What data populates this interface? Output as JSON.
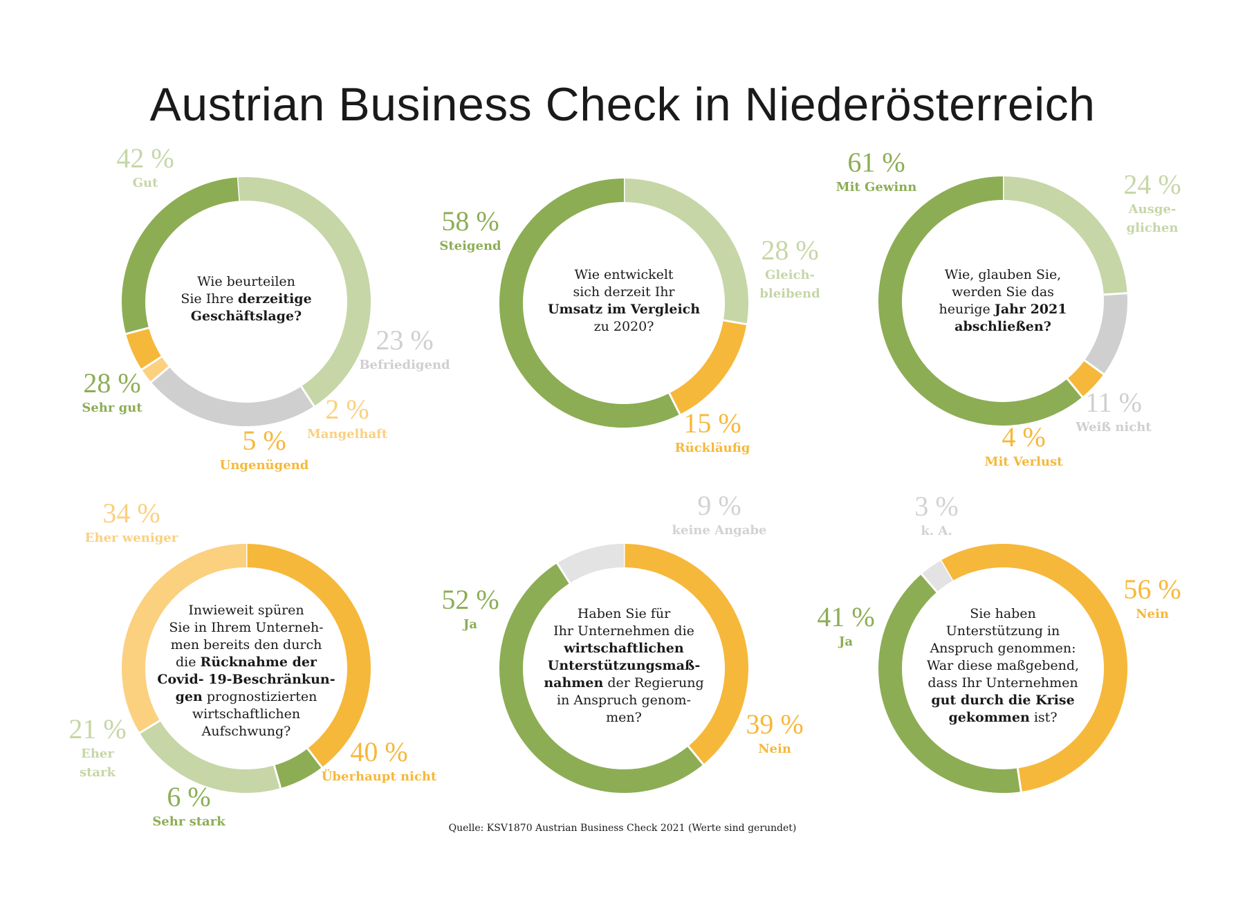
{
  "title": "Austrian Business Check in Niederösterreich",
  "source": "Quelle: KSV1870 Austrian Business Check 2021 (Werte sind gerundet)",
  "colors": {
    "dark_green": "#8cad54",
    "light_green": "#c6d6a7",
    "gray": "#cfcfcf",
    "light_gray": "#e3e3e3",
    "orange": "#f6b83a",
    "light_orange": "#fbd07f"
  },
  "chart_data": [
    {
      "type": "pie",
      "question": [
        {
          "t": "Wie beurteilen",
          "b": false
        },
        {
          "t": "Sie Ihre ",
          "b": false,
          "suffix": "derzeitige",
          "suffix_b": true
        },
        {
          "t": "Geschäftslage?",
          "b": true
        }
      ],
      "slices": [
        {
          "label": "Gut",
          "value": 42,
          "pct": "42 %",
          "color": "light_green"
        },
        {
          "label": "Befriedigend",
          "value": 23,
          "pct": "23 %",
          "color": "gray"
        },
        {
          "label": "Mangelhaft",
          "value": 2,
          "pct": "2 %",
          "color": "light_orange"
        },
        {
          "label": "Ungenügend",
          "value": 5,
          "pct": "5 %",
          "color": "orange"
        },
        {
          "label": "Sehr gut",
          "value": 28,
          "pct": "28 %",
          "color": "dark_green"
        }
      ]
    },
    {
      "type": "pie",
      "question": [
        {
          "t": "Wie entwickelt",
          "b": false
        },
        {
          "t": "sich derzeit Ihr",
          "b": false
        },
        {
          "t": "Umsatz im Vergleich",
          "b": true
        },
        {
          "t": "zu 2020?",
          "b": false
        }
      ],
      "slices": [
        {
          "label": "Gleich-\nbleibend",
          "value": 28,
          "pct": "28 %",
          "color": "light_green"
        },
        {
          "label": "Rückläufig",
          "value": 15,
          "pct": "15 %",
          "color": "orange"
        },
        {
          "label": "Steigend",
          "value": 58,
          "pct": "58 %",
          "color": "dark_green"
        }
      ]
    },
    {
      "type": "pie",
      "question": [
        {
          "t": "Wie, glauben Sie,",
          "b": false
        },
        {
          "t": "werden Sie das",
          "b": false
        },
        {
          "t": "heurige ",
          "b": false,
          "suffix": "Jahr 2021",
          "suffix_b": true
        },
        {
          "t": "abschließen?",
          "b": true
        }
      ],
      "slices": [
        {
          "label": "Ausge-\nglichen",
          "value": 24,
          "pct": "24 %",
          "color": "light_green"
        },
        {
          "label": "Weiß nicht",
          "value": 11,
          "pct": "11 %",
          "color": "gray"
        },
        {
          "label": "Mit Verlust",
          "value": 4,
          "pct": "4 %",
          "color": "orange"
        },
        {
          "label": "Mit Gewinn",
          "value": 61,
          "pct": "61 %",
          "color": "dark_green"
        }
      ]
    },
    {
      "type": "pie",
      "question": [
        {
          "t": "Inwieweit spüren",
          "b": false
        },
        {
          "t": "Sie in Ihrem Unterneh-",
          "b": false
        },
        {
          "t": "men bereits den durch",
          "b": false
        },
        {
          "t": "die ",
          "b": false,
          "suffix": "Rücknahme der",
          "suffix_b": true
        },
        {
          "t": "Covid- 19-Beschränkun-",
          "b": true
        },
        {
          "t": "gen",
          "b": true,
          "suffix": " prognostizierten",
          "suffix_b": false
        },
        {
          "t": "wirtschaftlichen",
          "b": false
        },
        {
          "t": "Aufschwung?",
          "b": false
        }
      ],
      "slices": [
        {
          "label": "Überhaupt nicht",
          "value": 40,
          "pct": "40 %",
          "color": "orange"
        },
        {
          "label": "Sehr stark",
          "value": 6,
          "pct": "6 %",
          "color": "dark_green"
        },
        {
          "label": "Eher\nstark",
          "value": 21,
          "pct": "21 %",
          "color": "light_green"
        },
        {
          "label": "Eher weniger",
          "value": 34,
          "pct": "34 %",
          "color": "light_orange"
        }
      ]
    },
    {
      "type": "pie",
      "question": [
        {
          "t": "Haben Sie für",
          "b": false
        },
        {
          "t": "Ihr Unternehmen die",
          "b": false
        },
        {
          "t": "wirtschaftlichen",
          "b": true
        },
        {
          "t": "Unterstützungsmaß-",
          "b": true
        },
        {
          "t": "nahmen",
          "b": true,
          "suffix": " der Regierung",
          "suffix_b": false
        },
        {
          "t": "in Anspruch genom-",
          "b": false
        },
        {
          "t": "men?",
          "b": false
        }
      ],
      "slices": [
        {
          "label": "Nein",
          "value": 39,
          "pct": "39 %",
          "color": "orange"
        },
        {
          "label": "Ja",
          "value": 52,
          "pct": "52 %",
          "color": "dark_green"
        },
        {
          "label": "keine Angabe",
          "value": 9,
          "pct": "9 %",
          "color": "light_gray"
        }
      ]
    },
    {
      "type": "pie",
      "question": [
        {
          "t": "Sie haben",
          "b": false
        },
        {
          "t": "Unterstützung in",
          "b": false
        },
        {
          "t": "Anspruch genommen:",
          "b": false
        },
        {
          "t": "War diese maßgebend,",
          "b": false
        },
        {
          "t": "dass Ihr Unternehmen",
          "b": false
        },
        {
          "t": "gut durch die Krise",
          "b": true
        },
        {
          "t": "gekommen",
          "b": true,
          "suffix": " ist?",
          "suffix_b": false
        }
      ],
      "slices": [
        {
          "label": "Nein",
          "value": 56,
          "pct": "56 %",
          "color": "orange"
        },
        {
          "label": "Ja",
          "value": 41,
          "pct": "41 %",
          "color": "dark_green"
        },
        {
          "label": "k. A.",
          "value": 3,
          "pct": "3 %",
          "color": "light_gray"
        }
      ]
    }
  ]
}
